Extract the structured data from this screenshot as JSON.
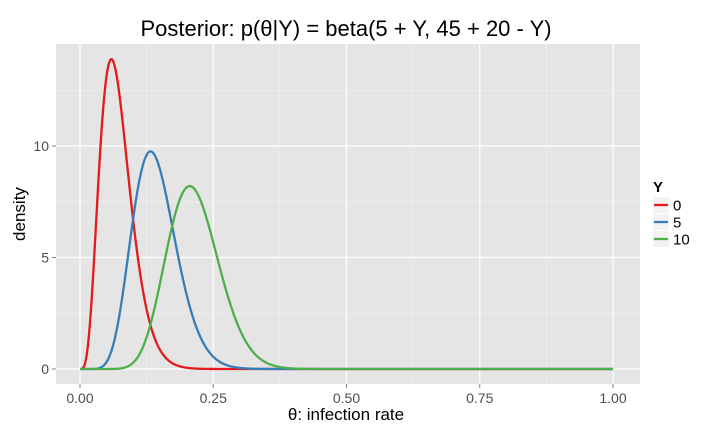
{
  "chart_data": {
    "type": "line",
    "title": "Posterior: p(θ|Y) = beta(5 + Y, 45 + 20 - Y)",
    "xlabel": "θ: infection rate",
    "ylabel": "density",
    "xlim": [
      0,
      1
    ],
    "ylim": [
      0,
      14.5
    ],
    "x_ticks": [
      0.0,
      0.25,
      0.5,
      0.75,
      1.0
    ],
    "x_tick_labels": [
      "0.00",
      "0.25",
      "0.50",
      "0.75",
      "1.00"
    ],
    "y_ticks": [
      0,
      5,
      10
    ],
    "y_tick_labels": [
      "0",
      "5",
      "10"
    ],
    "grid": true,
    "legend": {
      "title": "Y",
      "position": "right"
    },
    "series": [
      {
        "name": "0",
        "color": "#e41a1c",
        "alpha": 5,
        "beta": 65
      },
      {
        "name": "5",
        "color": "#377eb8",
        "alpha": 10,
        "beta": 60
      },
      {
        "name": "10",
        "color": "#4daf4a",
        "alpha": 15,
        "beta": 55
      }
    ]
  }
}
